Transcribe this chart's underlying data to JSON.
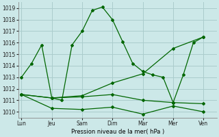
{
  "background_color": "#cce8e8",
  "grid_color": "#aacccc",
  "line_color": "#006600",
  "x_labels": [
    "Lun",
    "Jeu",
    "Sam",
    "Dim",
    "Mar",
    "Mer",
    "Ven"
  ],
  "x_ticks": [
    0,
    3,
    6,
    9,
    12,
    15,
    18
  ],
  "xlim": [
    -0.3,
    19.3
  ],
  "ylabel": "Pression niveau de la mer( hPa )",
  "ylim": [
    1009.5,
    1019.5
  ],
  "yticks": [
    1010,
    1011,
    1012,
    1013,
    1014,
    1015,
    1016,
    1017,
    1018,
    1019
  ],
  "series": [
    {
      "x": [
        0,
        1,
        2,
        3,
        4,
        5,
        6,
        7,
        8,
        9,
        10,
        11,
        12,
        13,
        14,
        15,
        16,
        17,
        18
      ],
      "y": [
        1013.0,
        1014.2,
        1015.8,
        1011.2,
        1011.0,
        1015.8,
        1017.0,
        1018.8,
        1019.1,
        1018.0,
        1016.1,
        1014.2,
        1013.5,
        1013.2,
        1013.0,
        1010.8,
        1013.2,
        1016.0,
        1016.5
      ]
    },
    {
      "x": [
        0,
        3,
        6,
        9,
        12,
        15,
        18
      ],
      "y": [
        1011.5,
        1011.2,
        1011.3,
        1011.5,
        1011.0,
        1010.8,
        1010.7
      ]
    },
    {
      "x": [
        0,
        3,
        6,
        9,
        12,
        15,
        18
      ],
      "y": [
        1011.5,
        1010.3,
        1010.2,
        1010.4,
        1009.8,
        1010.5,
        1010.0
      ]
    },
    {
      "x": [
        0,
        3,
        6,
        9,
        12,
        15,
        18
      ],
      "y": [
        1011.5,
        1011.2,
        1011.4,
        1012.5,
        1013.3,
        1015.5,
        1016.5
      ]
    }
  ]
}
